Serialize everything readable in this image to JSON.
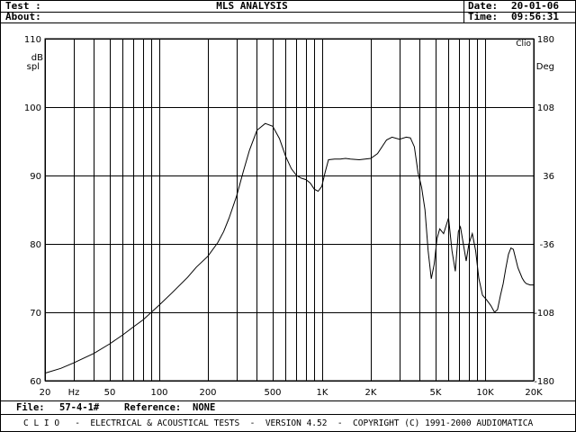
{
  "header": {
    "test_label": "Test :",
    "about_label": "About:",
    "title": "MLS ANALYSIS",
    "date_label": "Date:",
    "date_value": "20-01-06",
    "time_label": "Time:",
    "time_value": "09:56:31"
  },
  "chart_data": {
    "type": "line",
    "brand": "Clio",
    "left_unit_line1": "dB",
    "left_unit_line2": "spl",
    "right_unit": "Deg",
    "xscale": "log",
    "xlim": [
      20,
      20000
    ],
    "ylim": [
      60,
      110
    ],
    "grid": true,
    "x_tick_labels": [
      {
        "value": 20,
        "label": "20"
      },
      {
        "value": 30,
        "label": "Hz"
      },
      {
        "value": 50,
        "label": "50"
      },
      {
        "value": 100,
        "label": "100"
      },
      {
        "value": 200,
        "label": "200"
      },
      {
        "value": 500,
        "label": "500"
      },
      {
        "value": 1000,
        "label": "1K"
      },
      {
        "value": 2000,
        "label": "2K"
      },
      {
        "value": 5000,
        "label": "5K"
      },
      {
        "value": 10000,
        "label": "10K"
      },
      {
        "value": 20000,
        "label": "20K"
      }
    ],
    "x_grid": [
      20,
      30,
      40,
      50,
      60,
      70,
      80,
      90,
      100,
      200,
      300,
      400,
      500,
      600,
      700,
      800,
      900,
      1000,
      2000,
      3000,
      4000,
      5000,
      6000,
      7000,
      8000,
      9000,
      10000,
      20000
    ],
    "y_ticks_left": [
      {
        "value": 60,
        "label": "60"
      },
      {
        "value": 70,
        "label": "70"
      },
      {
        "value": 80,
        "label": "80"
      },
      {
        "value": 90,
        "label": "90"
      },
      {
        "value": 100,
        "label": "100"
      },
      {
        "value": 110,
        "label": "110"
      }
    ],
    "y_ticks_right": [
      {
        "value": 60,
        "label": "-180"
      },
      {
        "value": 70,
        "label": "-108"
      },
      {
        "value": 80,
        "label": "-36"
      },
      {
        "value": 90,
        "label": "36"
      },
      {
        "value": 100,
        "label": "108"
      },
      {
        "value": 110,
        "label": "180"
      }
    ],
    "series": [
      {
        "x": [
          20,
          25,
          30,
          40,
          50,
          60,
          70,
          80,
          100,
          120,
          150,
          170,
          200,
          230,
          250,
          270,
          300,
          330,
          360,
          400,
          450,
          500,
          550,
          600,
          650,
          700,
          750,
          800,
          850,
          900,
          950,
          1000,
          1050,
          1100,
          1200,
          1300,
          1400,
          1500,
          1700,
          2000,
          2200,
          2500,
          2700,
          3000,
          3300,
          3500,
          3700,
          3900,
          4100,
          4300,
          4500,
          4700,
          4900,
          5100,
          5300,
          5600,
          6000,
          6300,
          6600,
          6900,
          7100,
          7400,
          7700,
          8000,
          8400,
          8800,
          9200,
          9700,
          10300,
          10900,
          11500,
          12000,
          12500,
          13000,
          13500,
          14000,
          14500,
          15000,
          16000,
          17000,
          17500,
          18000,
          19000,
          20000
        ],
        "y": [
          61.1,
          61.8,
          62.6,
          64.0,
          65.4,
          66.7,
          67.9,
          68.9,
          71.0,
          72.8,
          75.1,
          76.6,
          78.2,
          80.2,
          81.8,
          83.8,
          87.0,
          90.6,
          93.7,
          96.6,
          97.6,
          97.2,
          95.4,
          92.8,
          91.0,
          90.0,
          89.6,
          89.4,
          88.9,
          88.0,
          87.7,
          88.4,
          90.5,
          92.3,
          92.4,
          92.4,
          92.5,
          92.4,
          92.3,
          92.5,
          93.2,
          95.2,
          95.6,
          95.3,
          95.6,
          95.5,
          94.2,
          90.4,
          88.3,
          85.0,
          79.0,
          74.9,
          77.0,
          80.8,
          82.2,
          81.5,
          83.8,
          79.0,
          76.0,
          81.8,
          82.5,
          80.0,
          77.5,
          80.0,
          81.5,
          79.0,
          75.0,
          72.5,
          71.8,
          71.0,
          70.0,
          70.4,
          72.5,
          74.2,
          76.5,
          78.5,
          79.4,
          79.2,
          76.5,
          75.0,
          74.5,
          74.2,
          74.0,
          74.0
        ]
      }
    ]
  },
  "footer": {
    "file_label": "File:",
    "file_value": "57-4-1#",
    "reference_label": "Reference:",
    "reference_value": "NONE",
    "credits": "C L I O   -  ELECTRICAL & ACOUSTICAL TESTS  -  VERSION 4.52  -  COPYRIGHT (C) 1991-2000 AUDIOMATICA"
  }
}
